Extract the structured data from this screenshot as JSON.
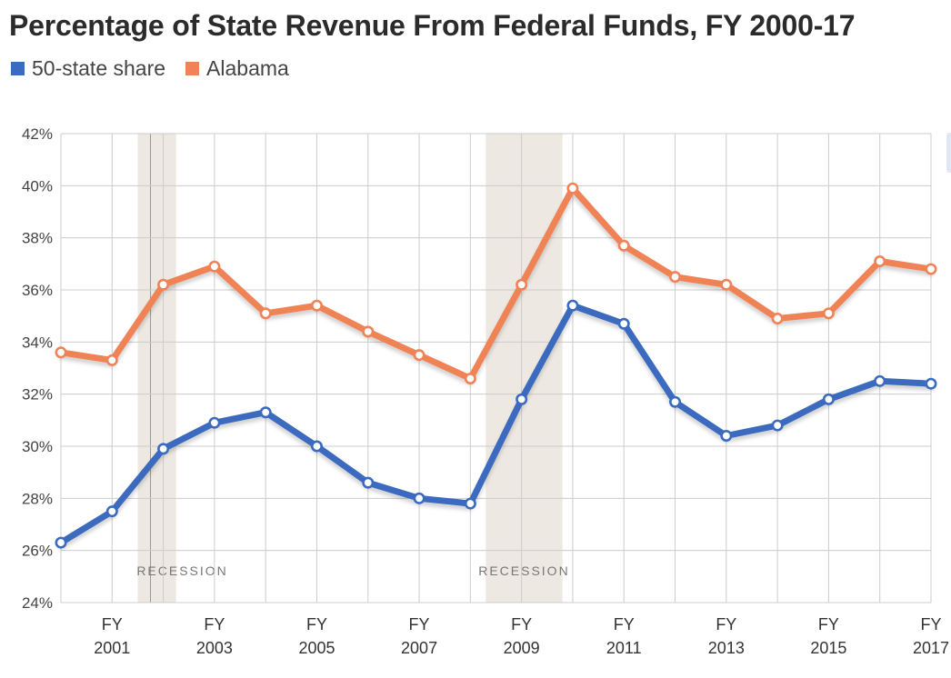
{
  "chart_data": {
    "type": "line",
    "title": "Percentage of State Revenue From Federal Funds, FY 2000-17",
    "x": [
      2000,
      2001,
      2002,
      2003,
      2004,
      2005,
      2006,
      2007,
      2008,
      2009,
      2010,
      2011,
      2012,
      2013,
      2014,
      2015,
      2016,
      2017
    ],
    "x_tick_labels": [
      {
        "x": 2001,
        "line1": "FY",
        "line2": "2001"
      },
      {
        "x": 2003,
        "line1": "FY",
        "line2": "2003"
      },
      {
        "x": 2005,
        "line1": "FY",
        "line2": "2005"
      },
      {
        "x": 2007,
        "line1": "FY",
        "line2": "2007"
      },
      {
        "x": 2009,
        "line1": "FY",
        "line2": "2009"
      },
      {
        "x": 2011,
        "line1": "FY",
        "line2": "2011"
      },
      {
        "x": 2013,
        "line1": "FY",
        "line2": "2013"
      },
      {
        "x": 2015,
        "line1": "FY",
        "line2": "2015"
      },
      {
        "x": 2017,
        "line1": "FY",
        "line2": "2017"
      }
    ],
    "y_ticks": [
      24,
      26,
      28,
      30,
      32,
      34,
      36,
      38,
      40,
      42
    ],
    "y_tick_suffix": "%",
    "ylim": [
      24,
      42
    ],
    "xlabel": "",
    "ylabel": "",
    "grid": true,
    "legend_position": "top-left",
    "series": [
      {
        "name": "50-state share",
        "color": "#3a6bbf",
        "values": [
          26.3,
          27.5,
          29.9,
          30.9,
          31.3,
          30.0,
          28.6,
          28.0,
          27.8,
          31.8,
          35.4,
          34.7,
          31.7,
          30.4,
          30.8,
          31.8,
          32.5,
          32.4
        ]
      },
      {
        "name": "Alabama",
        "color": "#ef8357",
        "values": [
          33.6,
          33.3,
          36.2,
          36.9,
          35.1,
          35.4,
          34.4,
          33.5,
          32.6,
          36.2,
          39.9,
          37.7,
          36.5,
          36.2,
          34.9,
          35.1,
          37.1,
          36.8
        ]
      }
    ],
    "recession_bands": [
      {
        "start": 2001.5,
        "end": 2002.25,
        "marker": 2001.75,
        "label": "RECESSION"
      },
      {
        "start": 2008.3,
        "end": 2009.8,
        "label": "RECESSION"
      }
    ],
    "colors": {
      "grid": "#cccccc",
      "band": "#ede9e2",
      "band_marker": "#999999",
      "marker_fill": "#ffffff"
    }
  }
}
